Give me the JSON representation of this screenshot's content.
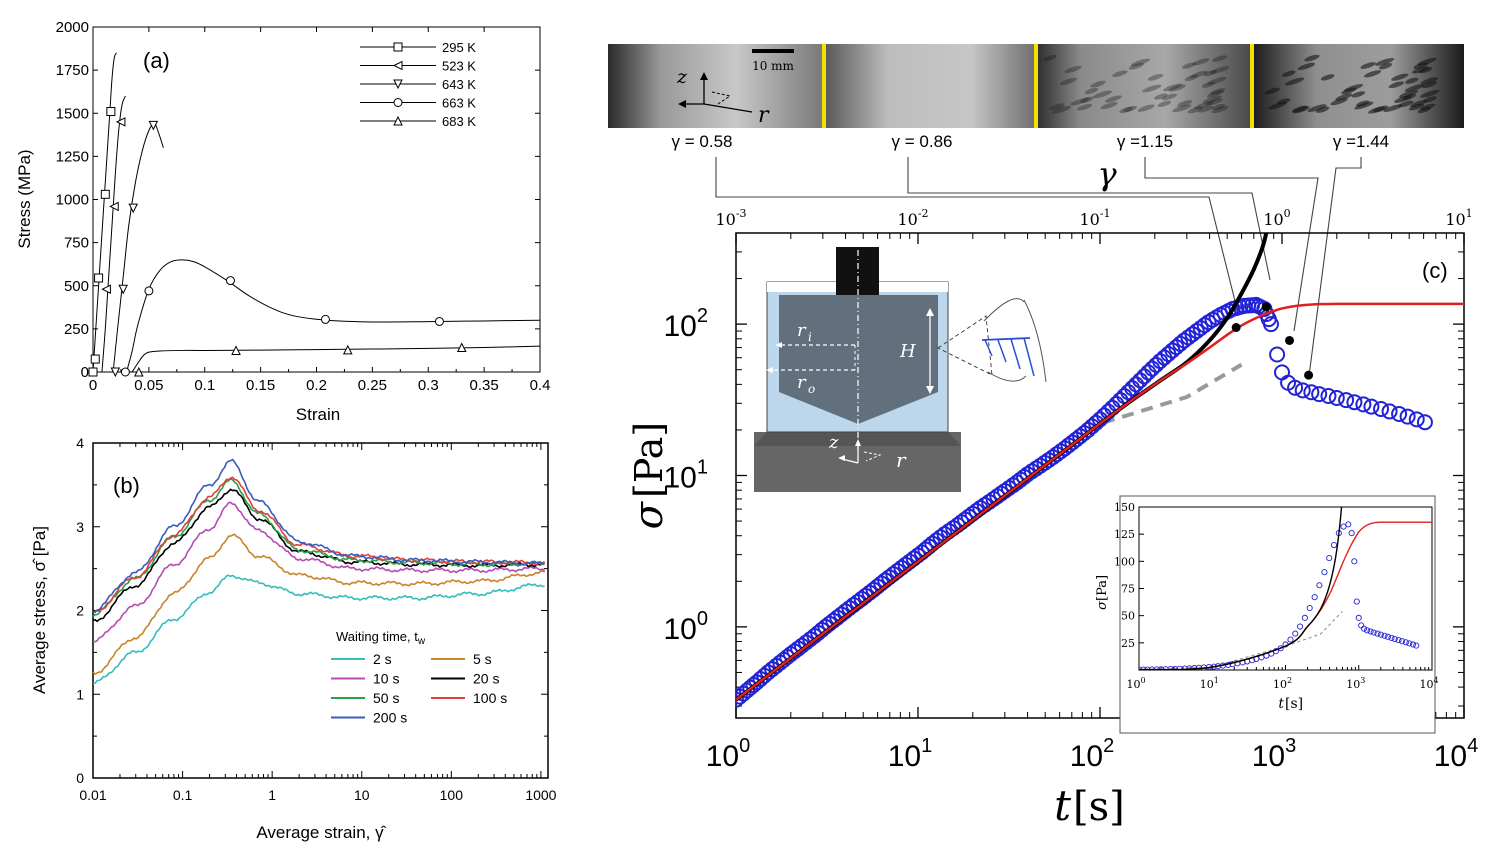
{
  "chart_data": [
    {
      "panel": "(a)",
      "type": "line",
      "xlabel": "Strain",
      "ylabel": "Stress (MPa)",
      "xlim": [
        0,
        0.4
      ],
      "ylim": [
        0,
        2000
      ],
      "xticks": [
        "0",
        "0.05",
        "0.1",
        "0.15",
        "0.2",
        "0.25",
        "0.3",
        "0.35",
        "0.4"
      ],
      "yticks": [
        "0",
        "250",
        "500",
        "750",
        "1000",
        "1250",
        "1500",
        "1750",
        "2000"
      ],
      "legend_position": "top-right",
      "series": [
        {
          "name": "295 K",
          "marker": "square",
          "x": [
            0,
            0.003,
            0.006,
            0.009,
            0.012,
            0.015,
            0.017,
            0.019,
            0.021
          ],
          "y": [
            0,
            300,
            600,
            900,
            1200,
            1500,
            1700,
            1820,
            1850
          ],
          "marker_x": [
            0,
            0.002,
            0.005,
            0.011,
            0.016
          ],
          "marker_y": [
            0,
            75,
            545,
            1030,
            1510
          ]
        },
        {
          "name": "523 K",
          "marker": "triangle-left",
          "x": [
            0.008,
            0.011,
            0.014,
            0.017,
            0.02,
            0.023,
            0.026,
            0.029
          ],
          "y": [
            0,
            250,
            550,
            850,
            1150,
            1400,
            1550,
            1600
          ],
          "marker_x": [
            0.012,
            0.019,
            0.025
          ],
          "marker_y": [
            480,
            960,
            1450
          ]
        },
        {
          "name": "643 K",
          "marker": "triangle-down",
          "x": [
            0.018,
            0.022,
            0.027,
            0.032,
            0.038,
            0.044,
            0.05,
            0.055,
            0.059,
            0.063
          ],
          "y": [
            0,
            250,
            550,
            850,
            1100,
            1280,
            1400,
            1440,
            1380,
            1300
          ],
          "marker_x": [
            0.02,
            0.027,
            0.036,
            0.054
          ],
          "marker_y": [
            0,
            480,
            950,
            1430
          ]
        },
        {
          "name": "663 K",
          "marker": "circle",
          "x": [
            0.03,
            0.035,
            0.04,
            0.05,
            0.06,
            0.07,
            0.08,
            0.09,
            0.1,
            0.12,
            0.14,
            0.16,
            0.18,
            0.21,
            0.25,
            0.3,
            0.35,
            0.4
          ],
          "y": [
            0,
            120,
            270,
            480,
            590,
            640,
            650,
            640,
            610,
            530,
            440,
            370,
            325,
            300,
            290,
            292,
            296,
            300
          ],
          "marker_x": [
            0.029,
            0.05,
            0.123,
            0.208,
            0.31
          ],
          "marker_y": [
            0,
            470,
            530,
            305,
            293
          ]
        },
        {
          "name": "683 K",
          "marker": "triangle-up",
          "x": [
            0.035,
            0.04,
            0.045,
            0.05,
            0.06,
            0.08,
            0.1,
            0.15,
            0.2,
            0.25,
            0.3,
            0.35,
            0.4
          ],
          "y": [
            0,
            50,
            95,
            115,
            122,
            125,
            125,
            127,
            130,
            133,
            137,
            142,
            150
          ],
          "marker_x": [
            0.041,
            0.128,
            0.228,
            0.33
          ],
          "marker_y": [
            0,
            125,
            128,
            142
          ]
        }
      ]
    },
    {
      "panel": "(b)",
      "type": "line",
      "xscale": "log",
      "xlabel": "Average strain, γ̂",
      "ylabel": "Average stress, σ̂ [Pa]",
      "xlim": [
        0.01,
        1200
      ],
      "ylim": [
        0,
        4
      ],
      "xticks": [
        "0.01",
        "0.1",
        "1",
        "10",
        "100",
        "1000"
      ],
      "yticks": [
        "0",
        "1",
        "2",
        "3",
        "4"
      ],
      "legend_title": "Waiting time, t",
      "legend_title_sub": "w",
      "legend_position": "bottom-right",
      "series": [
        {
          "name": "2 s",
          "color": "#35bcbc",
          "values": [
            1.13,
            1.5,
            1.9,
            2.22,
            2.42,
            2.33,
            2.2,
            2.15,
            2.15,
            2.2,
            2.31
          ]
        },
        {
          "name": "5 s",
          "color": "#c9842a",
          "values": [
            1.25,
            1.68,
            2.2,
            2.62,
            2.9,
            2.65,
            2.42,
            2.33,
            2.32,
            2.35,
            2.45
          ]
        },
        {
          "name": "10 s",
          "color": "#b54bb5",
          "values": [
            1.63,
            2.05,
            2.55,
            2.98,
            3.28,
            2.95,
            2.62,
            2.5,
            2.48,
            2.48,
            2.5
          ]
        },
        {
          "name": "20 s",
          "color": "#000000",
          "values": [
            1.87,
            2.3,
            2.8,
            3.23,
            3.45,
            3.1,
            2.7,
            2.58,
            2.55,
            2.54,
            2.55
          ]
        },
        {
          "name": "50 s",
          "color": "#2aa04a",
          "values": [
            1.95,
            2.38,
            2.88,
            3.32,
            3.55,
            3.15,
            2.72,
            2.6,
            2.57,
            2.55,
            2.56
          ]
        },
        {
          "name": "100 s",
          "color": "#e0413a",
          "values": [
            1.97,
            2.4,
            2.9,
            3.35,
            3.6,
            3.2,
            2.78,
            2.65,
            2.6,
            2.58,
            2.57
          ]
        },
        {
          "name": "200 s",
          "color": "#3b5bbf",
          "values": [
            2.0,
            2.45,
            3.0,
            3.5,
            3.78,
            3.3,
            2.82,
            2.65,
            2.6,
            2.58,
            2.56
          ]
        }
      ],
      "x": [
        0.01,
        0.03,
        0.08,
        0.2,
        0.35,
        0.7,
        2,
        8,
        40,
        200,
        1100
      ]
    },
    {
      "panel": "(c)",
      "type": "scatter",
      "xscale": "log",
      "yscale": "log",
      "xlabel": "t",
      "xlabel_unit": "[s]",
      "ylabel": "σ",
      "ylabel_unit": "[Pa]",
      "xlim": [
        1,
        10000
      ],
      "ylim": [
        0.25,
        400
      ],
      "xticks_base": [
        "10",
        "10",
        "10",
        "10",
        "10"
      ],
      "xticks_exp": [
        "0",
        "1",
        "2",
        "3",
        "4"
      ],
      "yticks_base": [
        "10",
        "10",
        "10"
      ],
      "yticks_exp": [
        "0",
        "1",
        "2"
      ],
      "top_axis_label": "γ",
      "top_ticks_base": [
        "10",
        "10",
        "10",
        "10",
        "10"
      ],
      "top_ticks_exp": [
        "-3",
        "-2",
        "-1",
        "0",
        "1"
      ],
      "inset_labels": {
        "r_inner": "r",
        "r_inner_sub": "i",
        "r_outer": "r",
        "r_outer_sub": "o",
        "height": "H",
        "z": "z",
        "r": "r"
      },
      "image_strip": {
        "scale_bar": "10 mm",
        "axis_z": "z",
        "axis_r": "r",
        "gamma_labels": [
          "γ = 0.58",
          "γ = 0.86",
          "γ =1.15",
          "γ =1.44"
        ]
      },
      "series": [
        {
          "name": "data",
          "marker": "circle",
          "color": "#2323d6",
          "x": [
            1,
            1.15,
            1.3,
            1.5,
            1.75,
            2,
            2.3,
            2.7,
            3.1,
            3.6,
            4.2,
            4.9,
            5.7,
            6.6,
            7.7,
            9,
            10.5,
            12,
            14,
            16.5,
            19,
            22,
            26,
            30,
            35,
            40,
            47,
            55,
            64,
            74,
            86,
            100,
            117,
            136,
            158,
            184,
            214,
            250,
            290,
            340,
            395,
            460,
            535,
            620,
            720,
            800,
            870,
            940,
            1000,
            1080,
            1180,
            1300,
            1450,
            1600,
            1800,
            2000,
            2250,
            2500,
            2800,
            3100,
            3500,
            3900,
            4400,
            4900,
            5500,
            6100
          ],
          "y": [
            0.33,
            0.38,
            0.43,
            0.5,
            0.58,
            0.66,
            0.75,
            0.87,
            1.0,
            1.15,
            1.33,
            1.53,
            1.76,
            2.03,
            2.34,
            2.7,
            3.1,
            3.55,
            4.1,
            4.7,
            5.35,
            6.1,
            7.0,
            7.9,
            9.0,
            10.2,
            11.6,
            13.2,
            15.1,
            17.3,
            20,
            23.5,
            28,
            33.5,
            40,
            48,
            57,
            67,
            78,
            90,
            103,
            115,
            126,
            132,
            134,
            126,
            100,
            63,
            48,
            41,
            38,
            36.5,
            35.5,
            34.5,
            33.5,
            32.5,
            31.5,
            30.5,
            29.5,
            28.5,
            27.5,
            26.5,
            25.5,
            24.5,
            23.5,
            22.5
          ]
        },
        {
          "name": "black-fit",
          "color": "#000000",
          "x": [
            1,
            10,
            100,
            200,
            300,
            400,
            500,
            600,
            700,
            780,
            820
          ],
          "y": [
            0.33,
            2.7,
            22,
            40,
            56,
            78,
            110,
            160,
            230,
            320,
            400
          ]
        },
        {
          "name": "red-fit",
          "color": "#e02020",
          "x": [
            1,
            10,
            100,
            200,
            300,
            400,
            500,
            600,
            700,
            800,
            900,
            1000,
            1200,
            1500,
            2000,
            4000,
            10000
          ],
          "y": [
            0.33,
            2.7,
            22,
            40,
            55,
            70,
            85,
            98,
            108,
            116,
            122,
            127,
            132,
            135,
            136,
            136,
            136
          ]
        },
        {
          "name": "dashed-guide",
          "color": "#999999",
          "x": [
            1,
            10,
            100,
            300,
            600
          ],
          "y": [
            0.33,
            2.7,
            22,
            33,
            54
          ]
        }
      ],
      "annotations": [
        {
          "gamma": "γ = 0.58",
          "t": 560,
          "sigma": 95
        },
        {
          "gamma": "γ = 0.86",
          "t": 820,
          "sigma": 130
        },
        {
          "gamma": "γ =1.15",
          "t": 1100,
          "sigma": 78
        },
        {
          "gamma": "γ =1.44",
          "t": 1400,
          "sigma": 46
        }
      ],
      "inset_chart": {
        "type": "scatter",
        "xscale": "log",
        "xlabel": "t",
        "xlabel_unit": "[s]",
        "ylabel": "σ",
        "ylabel_unit": "[Pa]",
        "xlim": [
          1,
          10000
        ],
        "ylim": [
          0,
          150
        ],
        "yticks": [
          "25",
          "50",
          "75",
          "100",
          "125",
          "150"
        ],
        "xticks_base": [
          "10",
          "10",
          "10",
          "10",
          "10"
        ],
        "xticks_exp": [
          "0",
          "1",
          "2",
          "3",
          "4"
        ]
      }
    }
  ],
  "labels": {
    "panel_a": "(a)",
    "panel_b": "(b)",
    "panel_c": "(c)"
  }
}
